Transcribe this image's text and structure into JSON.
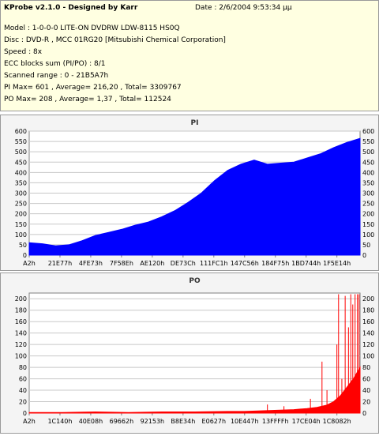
{
  "header": {
    "title": "KProbe v2.1.0 - Designed by Karr",
    "date_label": "Date : 2/6/2004 9:53:34 μμ",
    "lines": [
      "Model : 1-0-0-0 LITE-ON DVDRW LDW-8115   HS0Q",
      "Disc : DVD-R , MCC 01RG20  [Mitsubishi Chemical Corporation]",
      "Speed : 8x",
      "ECC blocks sum (PI/PO) : 8/1",
      "Scanned range : 0 - 21B5A7h",
      "PI Max= 601 , Average= 216,20 , Total= 3309767",
      "PO Max= 208 , Average= 1,37 , Total= 112524"
    ]
  },
  "chart_data": [
    {
      "type": "area",
      "title": "PI",
      "color": "#0000ff",
      "ylim": [
        0,
        600
      ],
      "yticks": [
        0,
        50,
        100,
        150,
        200,
        250,
        300,
        350,
        400,
        450,
        500,
        550,
        600
      ],
      "xticks": [
        "A2h",
        "21E77h",
        "4FE73h",
        "7F58Eh",
        "AE120h",
        "DE73Ch",
        "111FC1h",
        "147C56h",
        "184F75h",
        "1BD744h",
        "1F5E14h"
      ],
      "x": [
        0,
        0.04,
        0.08,
        0.12,
        0.16,
        0.2,
        0.24,
        0.28,
        0.32,
        0.36,
        0.4,
        0.44,
        0.48,
        0.52,
        0.56,
        0.6,
        0.64,
        0.68,
        0.72,
        0.76,
        0.8,
        0.84,
        0.88,
        0.92,
        0.96,
        1.0
      ],
      "series": [
        {
          "values": [
            60,
            55,
            45,
            50,
            70,
            95,
            110,
            125,
            145,
            160,
            185,
            215,
            255,
            300,
            360,
            410,
            440,
            460,
            440,
            445,
            450,
            470,
            490,
            520,
            545,
            565
          ]
        }
      ]
    },
    {
      "type": "area",
      "title": "PO",
      "color": "#ff0000",
      "ylim": [
        0,
        210
      ],
      "yticks": [
        0,
        20,
        40,
        60,
        80,
        100,
        120,
        140,
        160,
        180,
        200
      ],
      "xticks": [
        "A2h",
        "1C140h",
        "40E08h",
        "69662h",
        "92153h",
        "B8E34h",
        "E0627h",
        "10E447h",
        "13FFFFh",
        "17CE04h",
        "1C8082h"
      ],
      "x": [
        0,
        0.1,
        0.2,
        0.3,
        0.4,
        0.5,
        0.6,
        0.65,
        0.7,
        0.75,
        0.8,
        0.84,
        0.87,
        0.9,
        0.92,
        0.94,
        0.96,
        0.98,
        1.0
      ],
      "series": [
        {
          "values": [
            1,
            1,
            2,
            1,
            2,
            2,
            3,
            3,
            4,
            5,
            6,
            8,
            10,
            14,
            20,
            30,
            45,
            60,
            80
          ]
        }
      ],
      "spikes": [
        {
          "x": 0.72,
          "y": 15
        },
        {
          "x": 0.77,
          "y": 12
        },
        {
          "x": 0.85,
          "y": 25
        },
        {
          "x": 0.885,
          "y": 90
        },
        {
          "x": 0.9,
          "y": 40
        },
        {
          "x": 0.93,
          "y": 120
        },
        {
          "x": 0.935,
          "y": 208
        },
        {
          "x": 0.945,
          "y": 60
        },
        {
          "x": 0.955,
          "y": 205
        },
        {
          "x": 0.965,
          "y": 150
        },
        {
          "x": 0.972,
          "y": 208
        },
        {
          "x": 0.978,
          "y": 190
        },
        {
          "x": 0.985,
          "y": 208
        },
        {
          "x": 0.992,
          "y": 208
        },
        {
          "x": 0.997,
          "y": 208
        }
      ]
    }
  ]
}
